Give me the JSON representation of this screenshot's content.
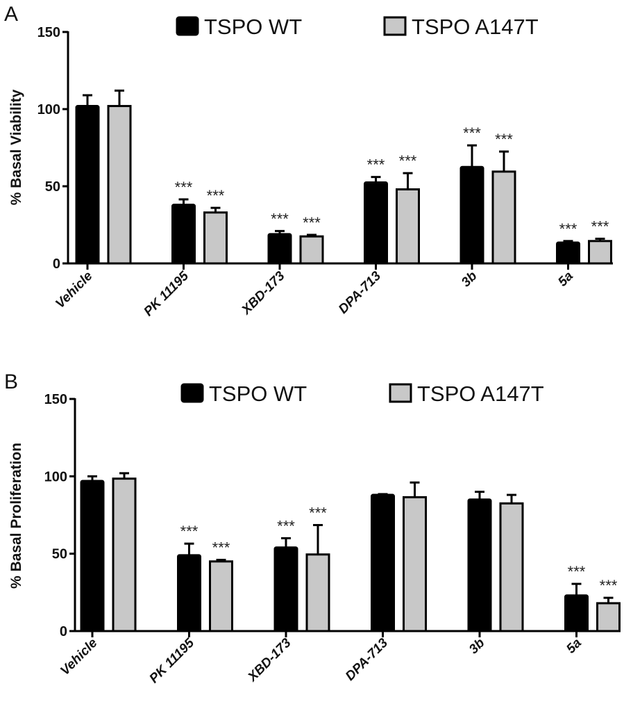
{
  "chart_data": [
    {
      "type": "bar",
      "panel": "A",
      "title": "",
      "xlabel": "",
      "ylabel": "% Basal Viability",
      "ylim": [
        0,
        150
      ],
      "yticks": [
        0,
        50,
        100,
        150
      ],
      "grid": false,
      "legend_position": "top",
      "categories": [
        "Vehicle",
        "PK 11195",
        "XBD-173",
        "DPA-713",
        "3b",
        "5a"
      ],
      "series": [
        {
          "name": "TSPO WT",
          "color": "#000000",
          "values": [
            102,
            38,
            19,
            52.5,
            62.5,
            13.5
          ],
          "errors": [
            7,
            3.5,
            2,
            3.5,
            14,
            1
          ],
          "significance": [
            "",
            "***",
            "***",
            "***",
            "***",
            "***"
          ]
        },
        {
          "name": "TSPO A147T",
          "color": "#c8c8c8",
          "values": [
            102,
            33,
            17.5,
            48,
            59.5,
            14.5
          ],
          "errors": [
            10,
            3,
            1,
            10.5,
            13,
            1.5
          ],
          "significance": [
            "",
            "***",
            "***",
            "***",
            "***",
            "***"
          ]
        }
      ]
    },
    {
      "type": "bar",
      "panel": "B",
      "title": "",
      "xlabel": "",
      "ylabel": "% Basal Proliferation",
      "ylim": [
        0,
        150
      ],
      "yticks": [
        0,
        50,
        100,
        150
      ],
      "grid": false,
      "legend_position": "top",
      "categories": [
        "Vehicle",
        "PK 11195",
        "XBD-173",
        "DPA-713",
        "3b",
        "5a"
      ],
      "series": [
        {
          "name": "TSPO WT",
          "color": "#000000",
          "values": [
            97,
            49,
            54,
            88,
            85,
            23
          ],
          "errors": [
            3,
            7.5,
            6,
            0.5,
            5,
            7.5
          ],
          "significance": [
            "",
            "***",
            "***",
            "",
            "",
            "***"
          ]
        },
        {
          "name": "TSPO A147T",
          "color": "#c8c8c8",
          "values": [
            98.5,
            45,
            49.5,
            86.5,
            82.5,
            18
          ],
          "errors": [
            3.5,
            1,
            19,
            9.5,
            5.5,
            3.5
          ],
          "significance": [
            "",
            "***",
            "***",
            "",
            "",
            "***"
          ]
        }
      ]
    }
  ]
}
